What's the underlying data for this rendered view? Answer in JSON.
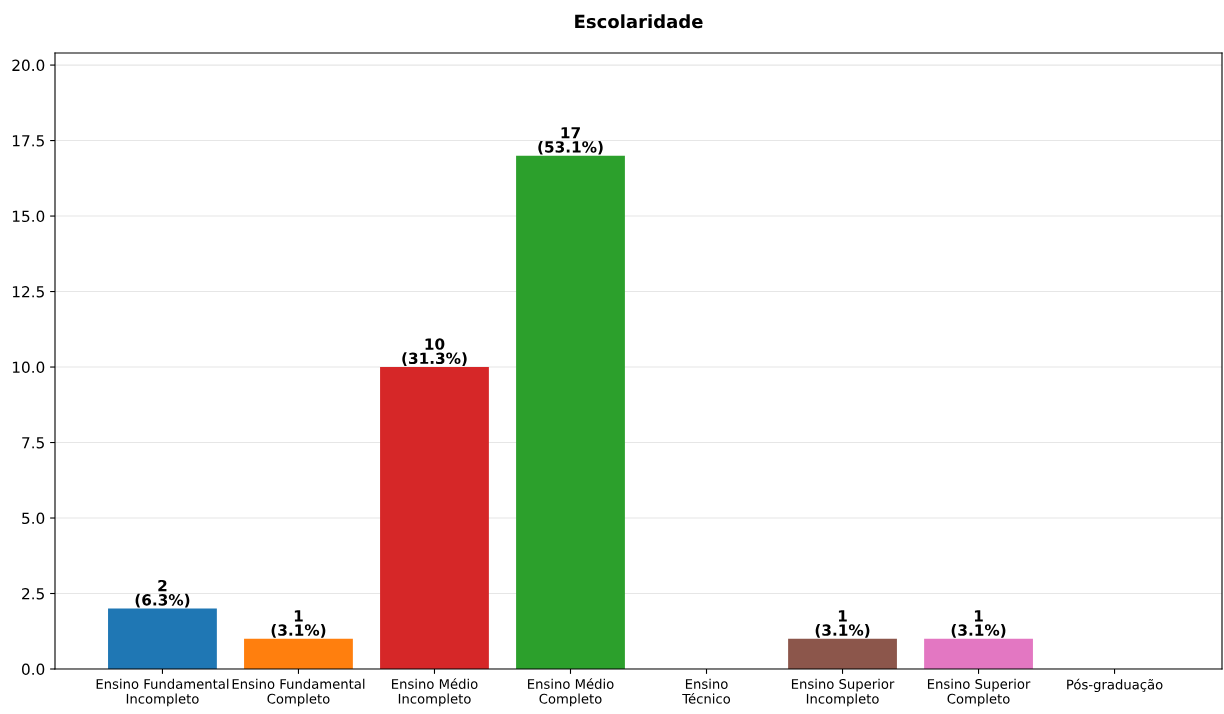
{
  "chart_data": {
    "type": "bar",
    "title": "Escolaridade",
    "categories": [
      "Ensino Fundamental\nIncompleto",
      "Ensino Fundamental\nCompleto",
      "Ensino Médio\nIncompleto",
      "Ensino Médio\nCompleto",
      "Ensino\nTécnico",
      "Ensino Superior\nIncompleto",
      "Ensino Superior\nCompleto",
      "Pós-graduação"
    ],
    "values": [
      2,
      1,
      10,
      17,
      0,
      1,
      1,
      0
    ],
    "colors": [
      "#1f77b4",
      "#ff7f0e",
      "#d62728",
      "#2ca02c",
      "#9467bd",
      "#8c564b",
      "#e377c2",
      "#7f7f7f"
    ],
    "value_labels": [
      "2\n(6.3%)",
      "1\n(3.1%)",
      "10\n(31.3%)",
      "17\n(53.1%)",
      null,
      "1\n(3.1%)",
      "1\n(3.1%)",
      null
    ],
    "ylim": [
      0,
      20.4
    ],
    "yticks": [
      {
        "value": 0,
        "label": "0.0"
      },
      {
        "value": 2.5,
        "label": "2.5"
      },
      {
        "value": 5,
        "label": "5.0"
      },
      {
        "value": 7.5,
        "label": "7.5"
      },
      {
        "value": 10,
        "label": "10.0"
      },
      {
        "value": 12.5,
        "label": "12.5"
      },
      {
        "value": 15,
        "label": "15.0"
      },
      {
        "value": 17.5,
        "label": "17.5"
      },
      {
        "value": 20,
        "label": "20.0"
      }
    ],
    "grid": "y"
  }
}
